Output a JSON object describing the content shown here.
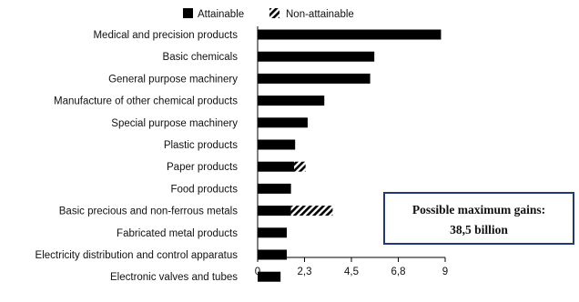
{
  "legend": {
    "attainable": "Attainable",
    "non_attainable": "Non-attainable"
  },
  "annotation": {
    "line1": "Possible maximum gains:",
    "line2": "38,5 billion"
  },
  "chart_data": {
    "type": "bar",
    "orientation": "horizontal",
    "stacked": true,
    "categories": [
      "Medical and precision products",
      "Basic chemicals",
      "General purpose machinery",
      "Manufacture of other chemical products",
      "Special purpose machinery",
      "Plastic products",
      "Paper products",
      "Food products",
      "Basic precious and non-ferrous metals",
      "Fabricated metal products",
      "Electricity distribution and control apparatus",
      "Electronic valves and tubes"
    ],
    "series": [
      {
        "name": "Attainable",
        "color": "#000000",
        "pattern": "solid",
        "values": [
          8.8,
          5.6,
          5.4,
          3.2,
          2.4,
          1.8,
          1.75,
          1.6,
          1.6,
          1.4,
          1.4,
          1.1
        ]
      },
      {
        "name": "Non-attainable",
        "color": "#000000",
        "pattern": "diagonal-hatch",
        "values": [
          0,
          0,
          0,
          0,
          0,
          0,
          0.55,
          0,
          2.0,
          0,
          0,
          0
        ]
      }
    ],
    "xticks": [
      "0",
      "2,3",
      "4,5",
      "6,8",
      "9"
    ],
    "xlim": [
      0,
      9
    ],
    "grid": false,
    "legend_position": "top"
  }
}
